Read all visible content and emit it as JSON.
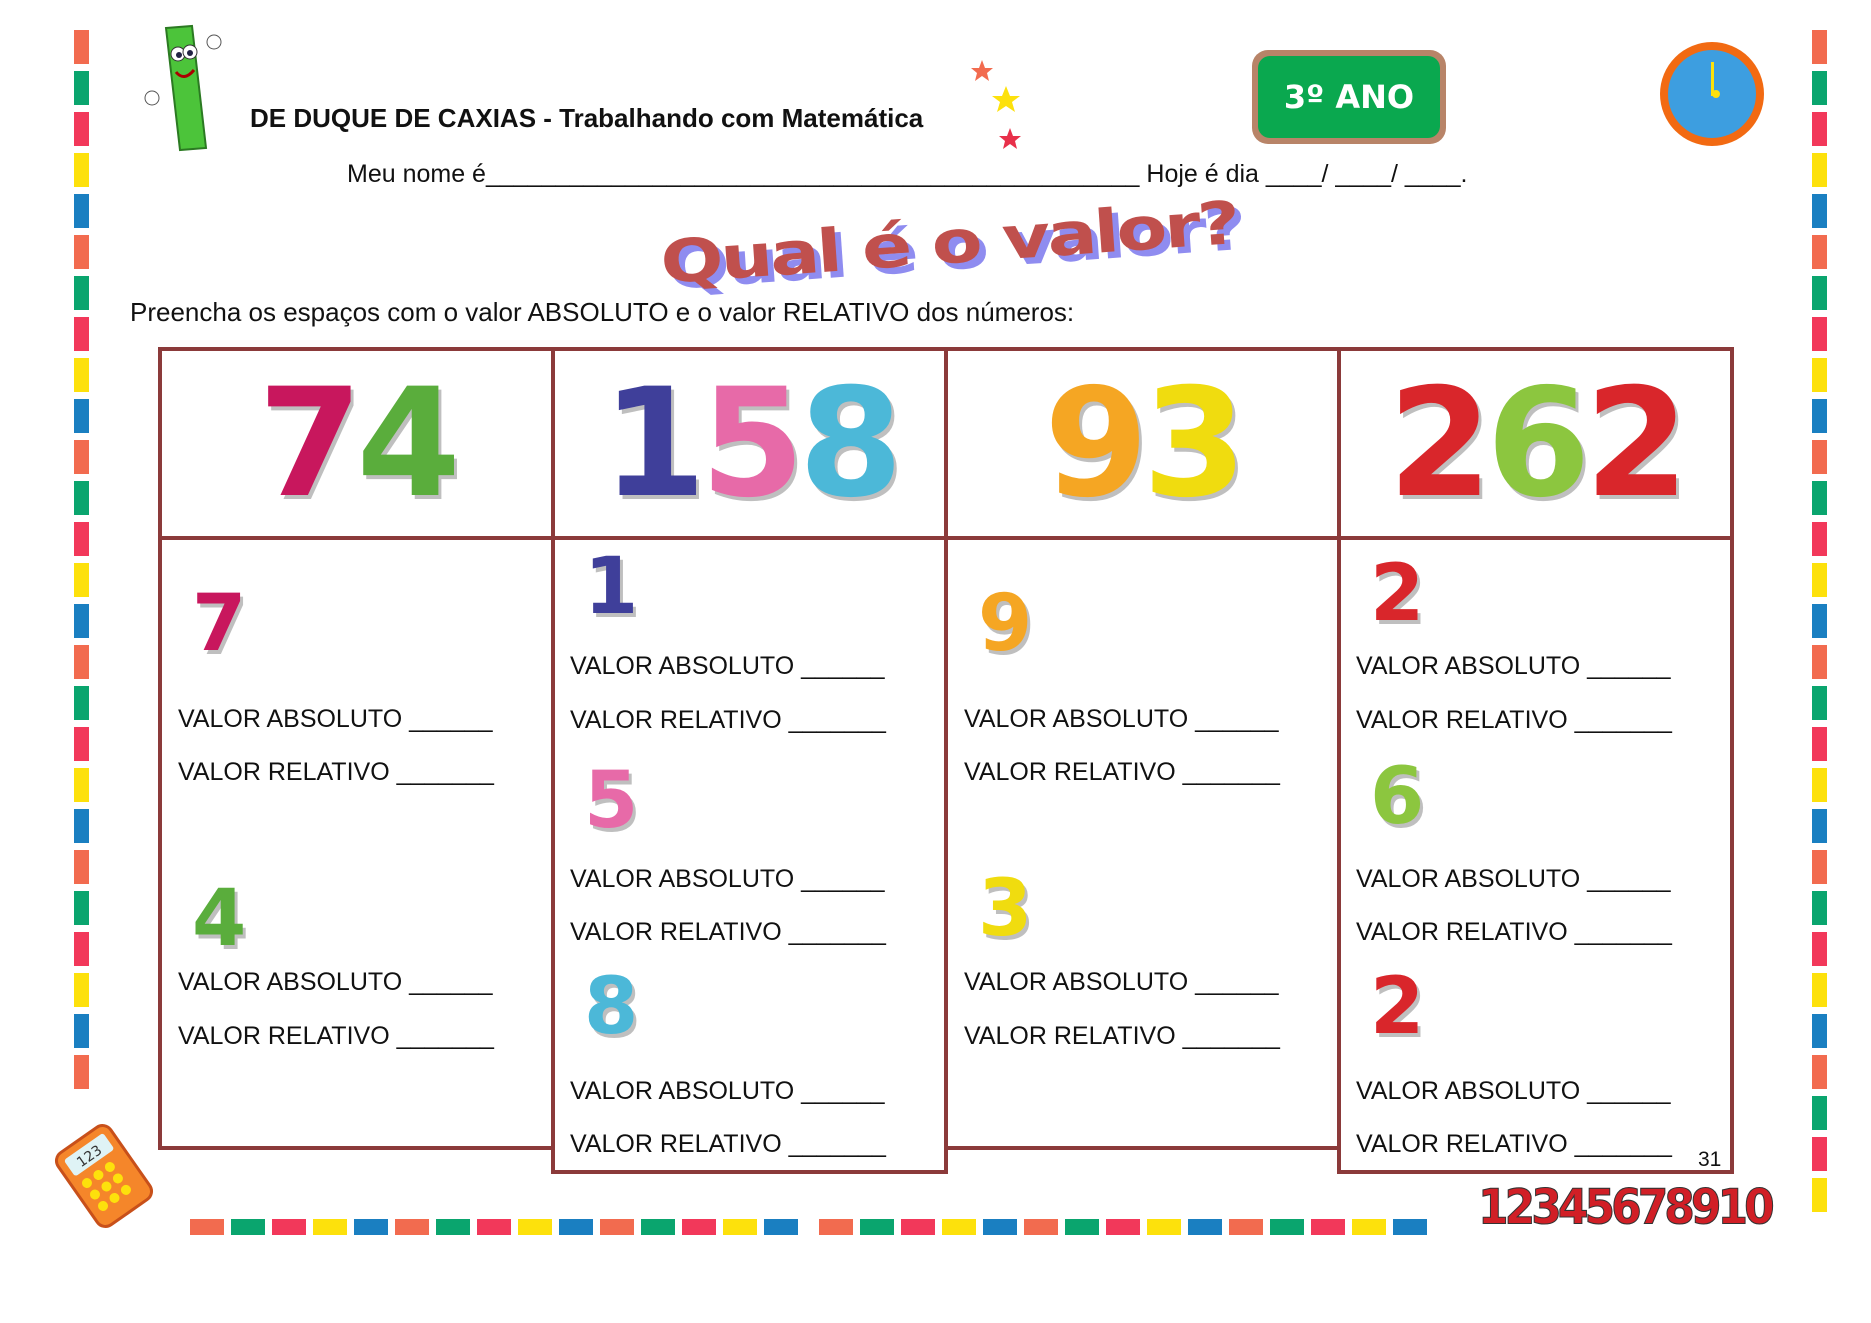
{
  "header": {
    "title": "DE DUQUE DE CAXIAS - Trabalhando com Matemática",
    "grade_badge": "3º ANO",
    "name_line": "Meu nome é_______________________________________________ Hoje é dia ____/ ____/ ____."
  },
  "main_title": "Qual é o valor?",
  "instruction": "Preencha os espaços com o valor ABSOLUTO e o valor RELATIVO dos números:",
  "labels": {
    "absolute": "VALOR ABSOLUTO ______",
    "relative": "VALOR RELATIVO _______"
  },
  "colors": {
    "border": "#8b3a3a",
    "title": "#c0504d",
    "title_shadow": "#8f8cf0",
    "strip": [
      "#f26b4f",
      "#0aa56e",
      "#f2385a",
      "#fde10c",
      "#1a7fc1"
    ]
  },
  "columns": [
    {
      "number": "74",
      "digits": [
        {
          "d": "7",
          "color": "#c8175d"
        },
        {
          "d": "4",
          "color": "#5aad3c"
        }
      ]
    },
    {
      "number": "158",
      "digits": [
        {
          "d": "1",
          "color": "#3f3f9a"
        },
        {
          "d": "5",
          "color": "#e76aa8"
        },
        {
          "d": "8",
          "color": "#4cb8d8"
        }
      ]
    },
    {
      "number": "93",
      "digits": [
        {
          "d": "9",
          "color": "#f5a623"
        },
        {
          "d": "3",
          "color": "#f0dc0f"
        }
      ]
    },
    {
      "number": "262",
      "digits": [
        {
          "d": "2",
          "color": "#d9262b"
        },
        {
          "d": "6",
          "color": "#8cc63f"
        },
        {
          "d": "2",
          "color": "#d9262b"
        }
      ]
    }
  ],
  "page_number": "31",
  "counting_numbers": "12345678910"
}
